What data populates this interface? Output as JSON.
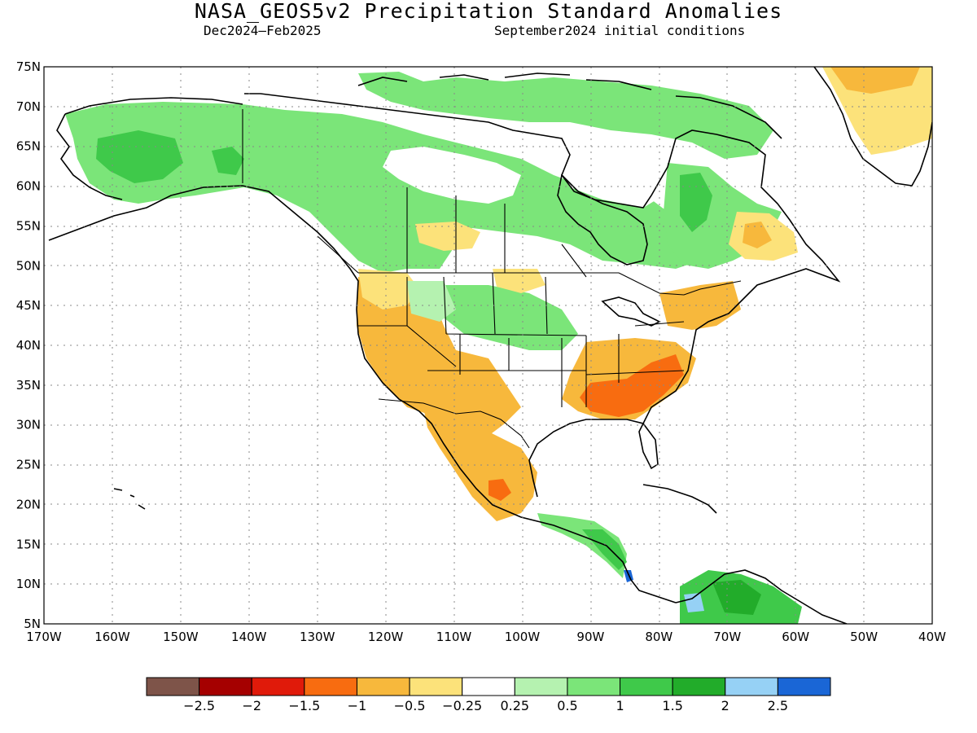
{
  "title": "NASA_GEOS5v2 Precipitation Standard Anomalies",
  "subtitle_left": "Dec2024–Feb2025",
  "subtitle_right": "September2024 initial conditions",
  "lat_labels": [
    "75N",
    "70N",
    "65N",
    "60N",
    "55N",
    "50N",
    "45N",
    "40N",
    "35N",
    "30N",
    "25N",
    "20N",
    "15N",
    "10N",
    "5N"
  ],
  "lon_labels": [
    "170W",
    "160W",
    "150W",
    "140W",
    "130W",
    "120W",
    "110W",
    "100W",
    "90W",
    "80W",
    "70W",
    "60W",
    "50W",
    "40W"
  ],
  "colorbar": {
    "colors": [
      "#7e5449",
      "#a50000",
      "#e01a0a",
      "#f86c10",
      "#f7b83c",
      "#fce27a",
      "#ffffff",
      "#b5f2b0",
      "#7be579",
      "#3fc94a",
      "#22ac2a",
      "#96d1f5",
      "#1a66d6"
    ],
    "labels": [
      "−2.5",
      "−2",
      "−1.5",
      "−1",
      "−0.5",
      "−0.25",
      "0.25",
      "0.5",
      "1",
      "1.5",
      "2",
      "2.5"
    ]
  },
  "regions": [
    {
      "name": "alaska-wet",
      "color": "#7be579",
      "anomaly": "0.5 to 1"
    },
    {
      "name": "alaska-core-wet",
      "color": "#3fc94a",
      "anomaly": "1 to 1.5"
    },
    {
      "name": "canada-north-wet",
      "color": "#7be579",
      "anomaly": "0.5 to 1"
    },
    {
      "name": "canada-prairie-wet",
      "color": "#b5f2b0",
      "anomaly": "0.25 to 0.5"
    },
    {
      "name": "quebec-wet",
      "color": "#3fc94a",
      "anomaly": "1 to 1.5"
    },
    {
      "name": "labrador-dry",
      "color": "#fce27a",
      "anomaly": "-0.5 to -0.25"
    },
    {
      "name": "greenland-dry",
      "color": "#f7b83c",
      "anomaly": "-1 to -0.5"
    },
    {
      "name": "us-west-dry",
      "color": "#f7b83c",
      "anomaly": "-1 to -0.5"
    },
    {
      "name": "southeast-us-dry",
      "color": "#f86c10",
      "anomaly": "-1.5 to -1"
    },
    {
      "name": "mexico-dry",
      "color": "#f7b83c",
      "anomaly": "-1 to -0.5"
    },
    {
      "name": "northern-plains-wet",
      "color": "#7be579",
      "anomaly": "0.5 to 1"
    },
    {
      "name": "central-america-wet",
      "color": "#3fc94a",
      "anomaly": "1 to 1.5"
    },
    {
      "name": "south-america-wet",
      "color": "#22ac2a",
      "anomaly": "1.5 to 2"
    }
  ]
}
